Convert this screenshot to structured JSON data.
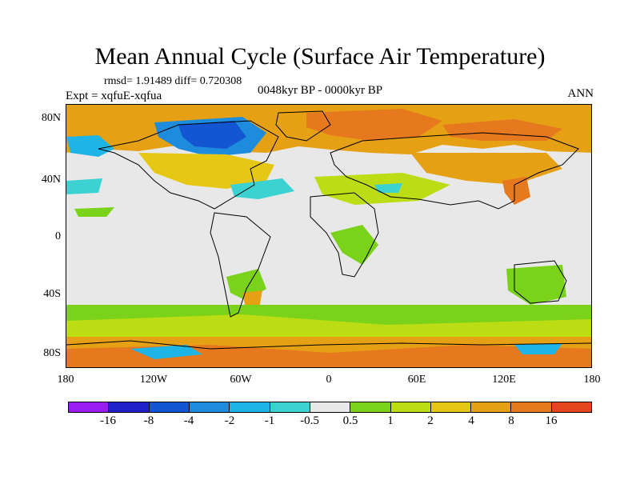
{
  "title": "Mean Annual Cycle (Surface Air Temperature)",
  "stats": "rmsd= 1.91489 diff= 0.720308",
  "experiment": "Expt = xqfuE-xqfua",
  "period": "0048kyr BP - 0000kyr BP",
  "season": "ANN",
  "lat_labels": [
    "80N",
    "40N",
    "0",
    "40S",
    "80S"
  ],
  "lon_labels": [
    "180",
    "120W",
    "60W",
    "0",
    "60E",
    "120E",
    "180"
  ],
  "colorbar": {
    "colors": [
      "#9a1cf2",
      "#2020c8",
      "#1455d2",
      "#1e8cdc",
      "#1eb4e6",
      "#3cd2d2",
      "#e8e8e8",
      "#7ad21a",
      "#bcdc14",
      "#e6c814",
      "#e6a014",
      "#e6781e",
      "#e6461e"
    ],
    "labels": [
      "-16",
      "-8",
      "-4",
      "-2",
      "-1",
      "-0.5",
      "0.5",
      "1",
      "2",
      "4",
      "8",
      "16"
    ]
  },
  "map_colors": {
    "background": "#e8e8e8",
    "strong_warm": "#e6781e",
    "warm": "#e6a014",
    "mild_warm": "#e6c814",
    "slight_warm": "#bcdc14",
    "weak_warm": "#7ad21a",
    "weak_cool": "#3cd2d2",
    "cool": "#1eb4e6",
    "cold": "#1e8cdc",
    "strong_cold": "#1455d2",
    "coastline": "#000000"
  }
}
